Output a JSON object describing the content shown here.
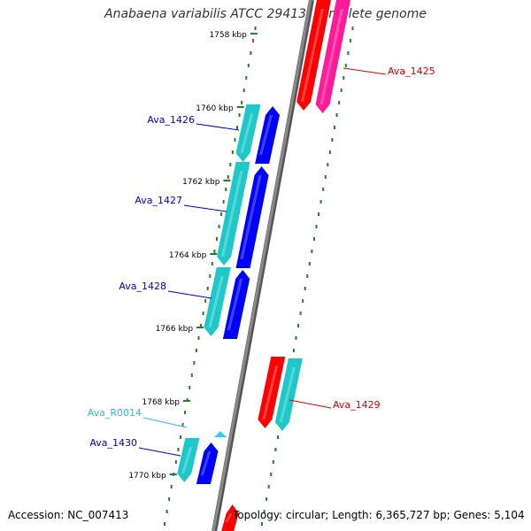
{
  "title": "Anabaena variabilis ATCC 29413, complete genome",
  "accession": "Accession: NC_007413",
  "summary": "Topology: circular; Length: 6,365,727 bp; Genes: 5,104",
  "colors": {
    "backbone": "#8a8a8a",
    "tick": "#2a7a2a",
    "red": "#ff0000",
    "pink": "#ff1a99",
    "cyan": "#1ec8c8",
    "blue": "#0000ff",
    "rna": "#33ccff",
    "label_red": "#dd0000",
    "label_blue": "#0000cc",
    "label_cyan": "#33bbdd"
  },
  "scale_labels": [
    "1758 kbp",
    "1760 kbp",
    "1762 kbp",
    "1764 kbp",
    "1766 kbp",
    "1768 kbp",
    "1770 kbp"
  ],
  "gene_labels": [
    {
      "name": "Ava_1425",
      "color": "red"
    },
    {
      "name": "Ava_1426",
      "color": "blue"
    },
    {
      "name": "Ava_1427",
      "color": "blue"
    },
    {
      "name": "Ava_1428",
      "color": "blue"
    },
    {
      "name": "Ava_1429",
      "color": "red"
    },
    {
      "name": "Ava_R0014",
      "color": "cyan"
    },
    {
      "name": "Ava_1430",
      "color": "blue"
    }
  ]
}
